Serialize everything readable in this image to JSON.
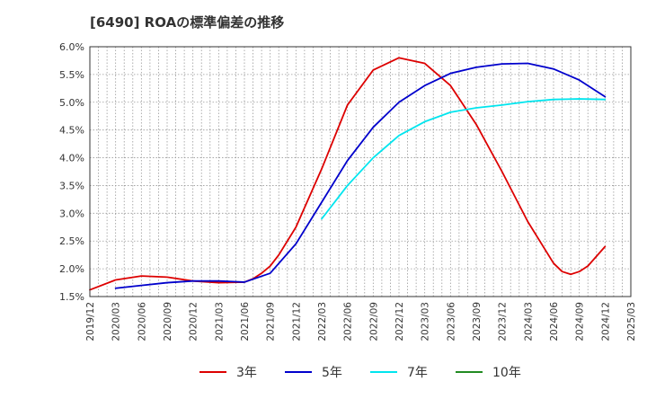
{
  "chart_data": {
    "type": "line",
    "title": "[6490]  ROAの標準偏差の推移",
    "xlabel": "",
    "ylabel": "",
    "ylim": [
      1.5,
      6.0
    ],
    "y_ticks": [
      "1.5%",
      "2.0%",
      "2.5%",
      "3.0%",
      "3.5%",
      "4.0%",
      "4.5%",
      "5.0%",
      "5.5%",
      "6.0%"
    ],
    "x_ticks": [
      "2019/12",
      "2020/03",
      "2020/06",
      "2020/09",
      "2020/12",
      "2021/03",
      "2021/06",
      "2021/09",
      "2021/12",
      "2022/03",
      "2022/06",
      "2022/09",
      "2022/12",
      "2023/03",
      "2023/06",
      "2023/09",
      "2023/12",
      "2024/03",
      "2024/06",
      "2024/09",
      "2024/12",
      "2025/03"
    ],
    "grid": true,
    "legend_position": "bottom",
    "series": [
      {
        "name": "3年",
        "color": "#dd0000",
        "points": [
          [
            "2019/12",
            1.62
          ],
          [
            "2020/03",
            1.8
          ],
          [
            "2020/06",
            1.87
          ],
          [
            "2020/09",
            1.85
          ],
          [
            "2020/12",
            1.78
          ],
          [
            "2021/03",
            1.75
          ],
          [
            "2021/06",
            1.76
          ],
          [
            "2021/07",
            1.82
          ],
          [
            "2021/08",
            1.92
          ],
          [
            "2021/09",
            2.05
          ],
          [
            "2021/10",
            2.25
          ],
          [
            "2021/12",
            2.75
          ],
          [
            "2022/03",
            3.8
          ],
          [
            "2022/06",
            4.95
          ],
          [
            "2022/09",
            5.58
          ],
          [
            "2022/12",
            5.8
          ],
          [
            "2023/03",
            5.7
          ],
          [
            "2023/06",
            5.3
          ],
          [
            "2023/09",
            4.6
          ],
          [
            "2023/12",
            3.75
          ],
          [
            "2024/03",
            2.85
          ],
          [
            "2024/06",
            2.1
          ],
          [
            "2024/07",
            1.95
          ],
          [
            "2024/08",
            1.9
          ],
          [
            "2024/09",
            1.95
          ],
          [
            "2024/10",
            2.05
          ],
          [
            "2024/12",
            2.4
          ]
        ]
      },
      {
        "name": "5年",
        "color": "#0000cc",
        "points": [
          [
            "2020/03",
            1.65
          ],
          [
            "2020/06",
            1.7
          ],
          [
            "2020/09",
            1.75
          ],
          [
            "2020/12",
            1.78
          ],
          [
            "2021/03",
            1.78
          ],
          [
            "2021/06",
            1.76
          ],
          [
            "2021/09",
            1.92
          ],
          [
            "2021/12",
            2.45
          ],
          [
            "2022/03",
            3.2
          ],
          [
            "2022/06",
            3.95
          ],
          [
            "2022/09",
            4.55
          ],
          [
            "2022/12",
            5.0
          ],
          [
            "2023/03",
            5.3
          ],
          [
            "2023/06",
            5.52
          ],
          [
            "2023/09",
            5.63
          ],
          [
            "2023/12",
            5.69
          ],
          [
            "2024/03",
            5.7
          ],
          [
            "2024/06",
            5.6
          ],
          [
            "2024/09",
            5.4
          ],
          [
            "2024/12",
            5.1
          ]
        ]
      },
      {
        "name": "7年",
        "color": "#00e5ee",
        "points": [
          [
            "2022/03",
            2.9
          ],
          [
            "2022/06",
            3.5
          ],
          [
            "2022/09",
            4.0
          ],
          [
            "2022/12",
            4.4
          ],
          [
            "2023/03",
            4.65
          ],
          [
            "2023/06",
            4.82
          ],
          [
            "2023/09",
            4.9
          ],
          [
            "2023/12",
            4.95
          ],
          [
            "2024/03",
            5.01
          ],
          [
            "2024/06",
            5.05
          ],
          [
            "2024/09",
            5.06
          ],
          [
            "2024/12",
            5.05
          ]
        ]
      },
      {
        "name": "10年",
        "color": "#228b22",
        "points": []
      }
    ]
  }
}
